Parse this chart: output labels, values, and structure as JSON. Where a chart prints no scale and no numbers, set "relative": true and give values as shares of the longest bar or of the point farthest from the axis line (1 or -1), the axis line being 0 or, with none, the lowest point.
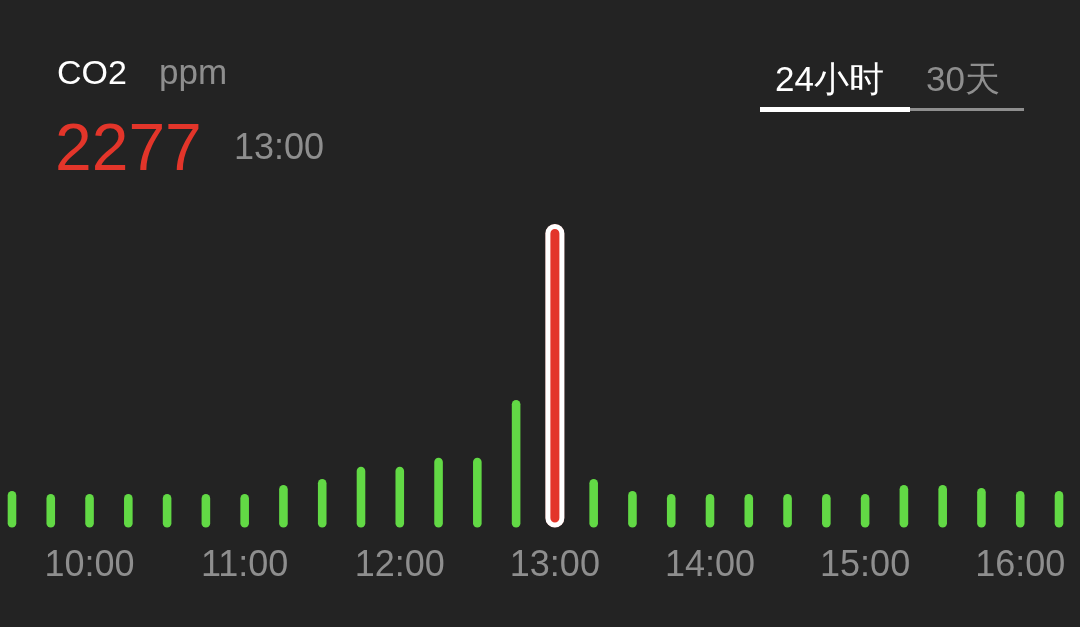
{
  "chart_data": {
    "type": "bar",
    "title": "CO2",
    "annotations": [
      "ppm",
      "2277",
      "13:00",
      "24小时",
      "30天"
    ],
    "relative": true,
    "categories": [
      null,
      null,
      "10:00",
      null,
      null,
      null,
      "11:00",
      null,
      null,
      null,
      "12:00",
      null,
      null,
      null,
      "13:00",
      null,
      null,
      null,
      "14:00",
      null,
      null,
      null,
      "15:00",
      null,
      null,
      null,
      "16:00",
      null
    ],
    "values": [
      0.12,
      0.11,
      0.11,
      0.11,
      0.11,
      0.11,
      0.11,
      0.14,
      0.16,
      0.2,
      0.2,
      0.23,
      0.23,
      0.42,
      1,
      0.16,
      0.12,
      0.11,
      0.11,
      0.11,
      0.11,
      0.11,
      0.11,
      0.14,
      0.14,
      0.13,
      0.12,
      0.12
    ],
    "colors": [
      "#62d945",
      "#62d945",
      "#62d945",
      "#62d945",
      "#62d945",
      "#62d945",
      "#62d945",
      "#62d945",
      "#62d945",
      "#62d945",
      "#62d945",
      "#62d945",
      "#62d945",
      "#62d945",
      "#e3352a",
      "#62d945",
      "#62d945",
      "#62d945",
      "#62d945",
      "#62d945",
      "#62d945",
      "#62d945",
      "#62d945",
      "#62d945",
      "#62d945",
      "#62d945",
      "#62d945",
      "#62d945"
    ]
  }
}
